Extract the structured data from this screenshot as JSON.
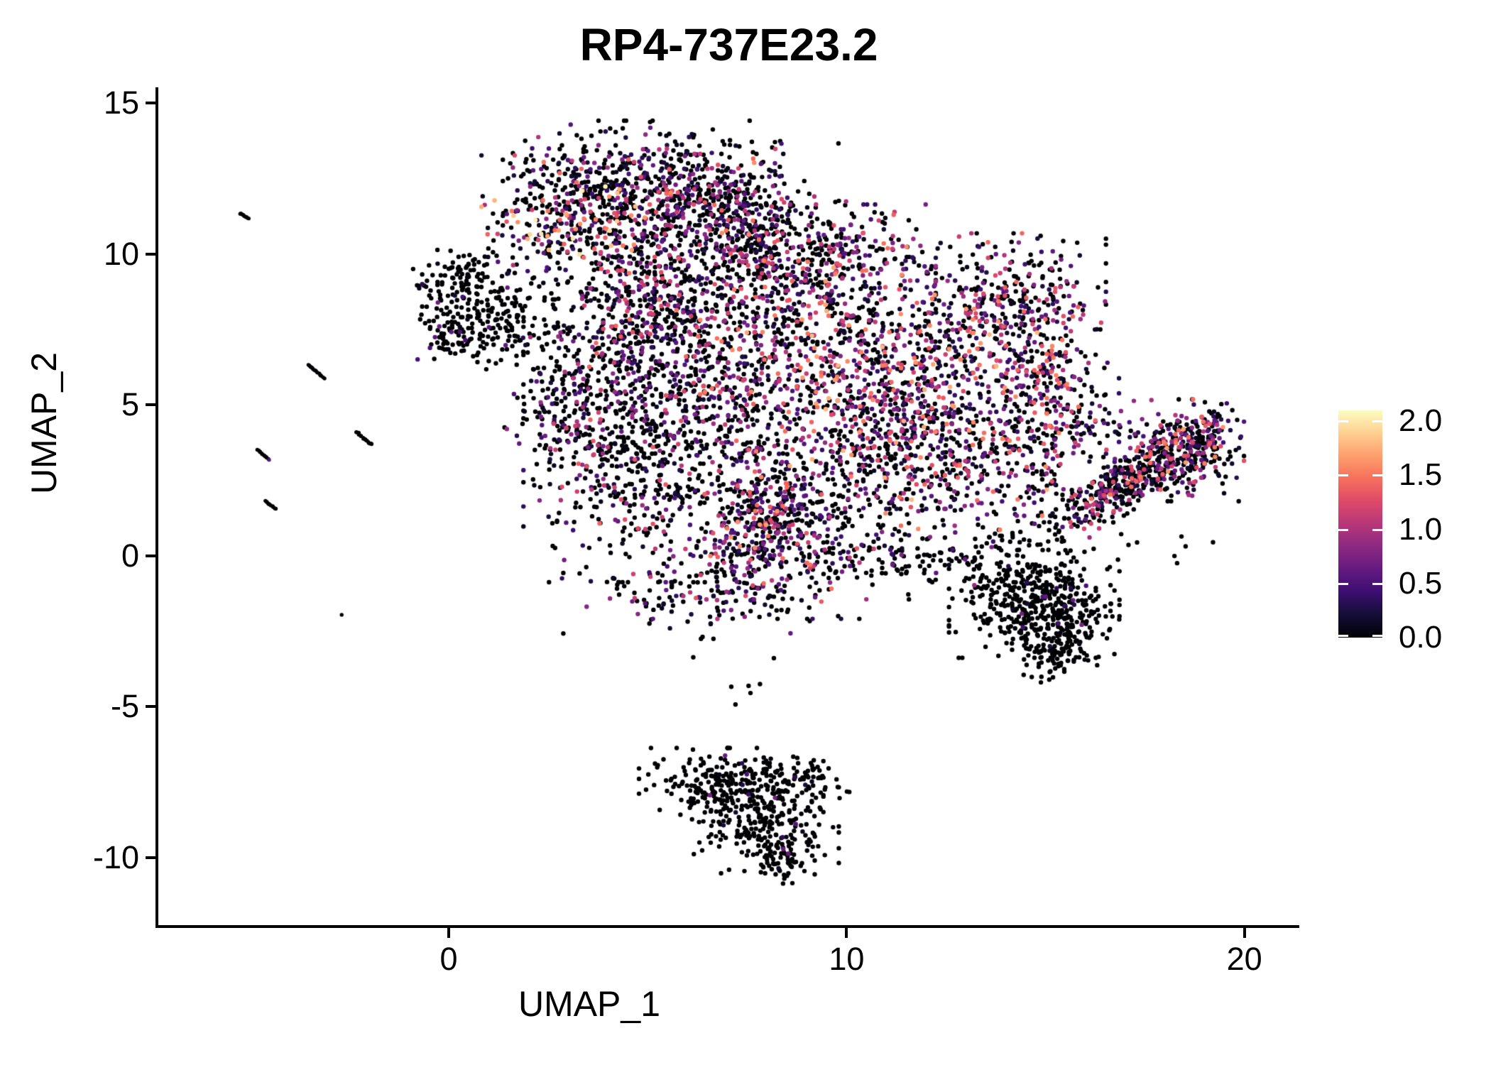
{
  "title": "RP4-737E23.2",
  "axes": {
    "x": {
      "label": "UMAP_1",
      "tick_labels": [
        "0",
        "10",
        "20"
      ],
      "tick_values": [
        0,
        10,
        20
      ],
      "range": [
        -7.3,
        21.38
      ]
    },
    "y": {
      "label": "UMAP_2",
      "tick_labels": [
        "15",
        "10",
        "5",
        "0",
        "-5",
        "-10"
      ],
      "tick_values": [
        15,
        10,
        5,
        0,
        -5,
        -10
      ],
      "range": [
        -12.22,
        15.47
      ]
    }
  },
  "legend": {
    "tick_labels": [
      "2.0",
      "1.5",
      "1.0",
      "0.5",
      "0.0"
    ],
    "tick_values": [
      2.0,
      1.5,
      1.0,
      0.5,
      0.0
    ],
    "bar_max": 2.1,
    "palette": "magma",
    "stops": [
      [
        0,
        "#000004"
      ],
      [
        0.1,
        "#140e36"
      ],
      [
        0.2,
        "#3b0f70"
      ],
      [
        0.3,
        "#641a80"
      ],
      [
        0.4,
        "#8c2981"
      ],
      [
        0.5,
        "#b73779"
      ],
      [
        0.6,
        "#de4968"
      ],
      [
        0.7,
        "#f7705c"
      ],
      [
        0.8,
        "#fe9f6d"
      ],
      [
        0.9,
        "#fecf92"
      ],
      [
        1,
        "#fcfdbf"
      ]
    ]
  },
  "chart_data": {
    "type": "scatter",
    "title": "RP4-737E23.2",
    "xlabel": "UMAP_1",
    "ylabel": "UMAP_2",
    "xlim": [
      -7.3,
      21.38
    ],
    "ylim": [
      -12.22,
      15.47
    ],
    "x_ticks": [
      0,
      10,
      20
    ],
    "y_ticks": [
      15,
      10,
      5,
      0,
      -5,
      -10
    ],
    "grid": false,
    "legend_position": "right",
    "color_scale": {
      "palette": "magma",
      "domain": [
        0,
        2.1
      ],
      "legend_ticks": [
        0,
        0.5,
        1.0,
        1.5,
        2.0
      ]
    },
    "point_radius_px": 3.2,
    "seed": 1337,
    "clusters": [
      {
        "name": "top-band",
        "cx": 4.78,
        "cy": 12.41,
        "sx": 1.52,
        "sy": 0.89,
        "rot": 0,
        "n": 420,
        "p0": 0.48,
        "emax": 1.5,
        "epow": 1.6
      },
      {
        "name": "top-left-hotspot",
        "cx": 3.14,
        "cy": 11.35,
        "sx": 1.03,
        "sy": 0.85,
        "rot": 0,
        "n": 260,
        "p0": 0.4,
        "emax": 2.1,
        "epow": 1.8
      },
      {
        "name": "top-right-band",
        "cx": 6.3,
        "cy": 11.4,
        "sx": 1.28,
        "sy": 0.85,
        "rot": 0,
        "n": 270,
        "p0": 0.5,
        "emax": 1.6,
        "epow": 1.7
      },
      {
        "name": "top-lower-fringe",
        "cx": 4.42,
        "cy": 9.94,
        "sx": 1.7,
        "sy": 0.66,
        "rot": 0,
        "n": 95,
        "p0": 0.6,
        "emax": 1.2,
        "epow": 1.5
      },
      {
        "name": "top-left-tail",
        "cx": 2.46,
        "cy": 9.75,
        "sx": 0.46,
        "sy": 0.56,
        "rot": 0,
        "n": 22,
        "p0": 0.75,
        "emax": 0.9,
        "epow": 1.5
      },
      {
        "name": "top-right-bridge",
        "cx": 7.39,
        "cy": 11.92,
        "sx": 0.8,
        "sy": 0.75,
        "rot": 0,
        "n": 75,
        "p0": 0.55,
        "emax": 1.4,
        "epow": 1.6
      },
      {
        "name": "top-right-trail",
        "cx": 7.24,
        "cy": 10.6,
        "sx": 0.54,
        "sy": 0.61,
        "rot": 0,
        "n": 38,
        "p0": 0.65,
        "emax": 1.2,
        "epow": 1.5
      },
      {
        "name": "left-dark-upper",
        "cx": 0.32,
        "cy": 9.0,
        "sx": 0.54,
        "sy": 0.54,
        "rot": 0,
        "n": 115,
        "p0": 0.93,
        "emax": 0.8,
        "epow": 1.2
      },
      {
        "name": "left-dark-lower",
        "cx": 0.14,
        "cy": 7.47,
        "sx": 0.41,
        "sy": 0.47,
        "rot": 0,
        "n": 85,
        "p0": 0.94,
        "emax": 0.7,
        "epow": 1.2
      },
      {
        "name": "left-dark-right",
        "cx": 1.11,
        "cy": 7.66,
        "sx": 0.46,
        "sy": 0.66,
        "rot": 0,
        "n": 85,
        "p0": 0.92,
        "emax": 0.9,
        "epow": 1.2
      },
      {
        "name": "left-dark-fringe",
        "cx": 1.87,
        "cy": 8.34,
        "sx": 0.46,
        "sy": 0.71,
        "rot": 0,
        "n": 22,
        "p0": 0.85,
        "emax": 0.8,
        "epow": 1.3
      },
      {
        "name": "main-left-tip",
        "cx": 3.0,
        "cy": 5.24,
        "sx": 0.71,
        "sy": 1.32,
        "rot": 0,
        "n": 190,
        "p0": 0.62,
        "emax": 1.2,
        "epow": 1.6
      },
      {
        "name": "main-upper-left",
        "cx": 4.87,
        "cy": 8.01,
        "sx": 1.0,
        "sy": 1.18,
        "rot": 0,
        "n": 380,
        "p0": 0.52,
        "emax": 1.5,
        "epow": 1.6
      },
      {
        "name": "main-mid-left",
        "cx": 4.6,
        "cy": 3.35,
        "sx": 1.21,
        "sy": 1.88,
        "rot": 0,
        "n": 500,
        "p0": 0.56,
        "emax": 1.4,
        "epow": 1.7
      },
      {
        "name": "main-center",
        "cx": 7.1,
        "cy": 6.18,
        "sx": 1.43,
        "sy": 2.12,
        "rot": 0,
        "n": 650,
        "p0": 0.47,
        "emax": 1.6,
        "epow": 1.6
      },
      {
        "name": "main-hot-right",
        "cx": 11.03,
        "cy": 5.89,
        "sx": 1.78,
        "sy": 1.93,
        "rot": 0,
        "n": 920,
        "p0": 0.32,
        "emax": 1.8,
        "epow": 1.4
      },
      {
        "name": "main-upper-band",
        "cx": 8.71,
        "cy": 9.52,
        "sx": 1.57,
        "sy": 0.94,
        "rot": 0,
        "n": 390,
        "p0": 0.47,
        "emax": 1.6,
        "epow": 1.6
      },
      {
        "name": "main-right-arm",
        "cx": 14.27,
        "cy": 8.25,
        "sx": 1.0,
        "sy": 1.08,
        "rot": 0,
        "n": 270,
        "p0": 0.52,
        "emax": 1.5,
        "epow": 1.5
      },
      {
        "name": "main-right-column",
        "cx": 15.16,
        "cy": 5.12,
        "sx": 0.75,
        "sy": 1.69,
        "rot": 0,
        "n": 310,
        "p0": 0.42,
        "emax": 1.6,
        "epow": 1.4
      },
      {
        "name": "main-lower-mid",
        "cx": 8.35,
        "cy": 1.19,
        "sx": 1.43,
        "sy": 1.46,
        "rot": 0,
        "n": 480,
        "p0": 0.5,
        "emax": 1.5,
        "epow": 1.6
      },
      {
        "name": "main-lower-right",
        "cx": 12.45,
        "cy": 3.31,
        "sx": 1.25,
        "sy": 1.46,
        "rot": 0,
        "n": 390,
        "p0": 0.47,
        "emax": 1.6,
        "epow": 1.5
      },
      {
        "name": "main-trail-to-blob",
        "cx": 11.92,
        "cy": -0.34,
        "sx": 1.28,
        "sy": 0.42,
        "rot": 0,
        "n": 85,
        "p0": 0.88,
        "emax": 0.9,
        "epow": 1.3
      },
      {
        "name": "main-hot-pocket",
        "cx": 7.85,
        "cy": 0.72,
        "sx": 0.57,
        "sy": 1.22,
        "rot": 0,
        "n": 160,
        "p0": 0.38,
        "emax": 1.7,
        "epow": 1.4
      },
      {
        "name": "main-bottom-fringe",
        "cx": 6.57,
        "cy": -1.16,
        "sx": 1.64,
        "sy": 0.71,
        "rot": 0,
        "n": 150,
        "p0": 0.62,
        "emax": 1.2,
        "epow": 1.6
      },
      {
        "name": "main-top-notch",
        "cx": 9.78,
        "cy": 10.6,
        "sx": 0.93,
        "sy": 0.61,
        "rot": 0,
        "n": 60,
        "p0": 0.62,
        "emax": 1.3,
        "epow": 1.6
      },
      {
        "name": "dark-blob-left",
        "cx": 14.42,
        "cy": -1.16,
        "sx": 0.82,
        "sy": 0.99,
        "rot": 0,
        "n": 330,
        "p0": 0.965,
        "emax": 0.9,
        "epow": 1.2
      },
      {
        "name": "dark-blob-right",
        "cx": 15.42,
        "cy": -2.11,
        "sx": 0.64,
        "sy": 0.85,
        "rot": 0,
        "n": 230,
        "p0": 0.97,
        "emax": 0.8,
        "epow": 1.2
      },
      {
        "name": "dark-blob-tail",
        "cx": 15.06,
        "cy": -3.38,
        "sx": 0.34,
        "sy": 0.42,
        "rot": 0,
        "n": 60,
        "p0": 0.99,
        "emax": 0.6,
        "epow": 1.0
      },
      {
        "name": "right-diag-band",
        "cx": 17.23,
        "cy": 2.6,
        "sx": 1.15,
        "sy": 0.36,
        "rot": 40,
        "n": 430,
        "p0": 0.52,
        "emax": 1.5,
        "epow": 1.5
      },
      {
        "name": "right-diag-head",
        "cx": 18.55,
        "cy": 3.49,
        "sx": 0.64,
        "sy": 0.75,
        "rot": 0,
        "n": 240,
        "p0": 0.4,
        "emax": 1.7,
        "epow": 1.4
      },
      {
        "name": "right-diag-tip",
        "cx": 19.34,
        "cy": 4.29,
        "sx": 0.32,
        "sy": 0.38,
        "rot": 0,
        "n": 25,
        "p0": 0.55,
        "emax": 1.4,
        "epow": 1.4
      },
      {
        "name": "bottom-wide",
        "cx": 7.1,
        "cy": -7.59,
        "sx": 1.03,
        "sy": 0.54,
        "rot": 0,
        "n": 270,
        "p0": 0.965,
        "emax": 0.8,
        "epow": 1.2
      },
      {
        "name": "bottom-lower",
        "cx": 7.96,
        "cy": -8.93,
        "sx": 0.82,
        "sy": 0.71,
        "rot": 0,
        "n": 210,
        "p0": 0.96,
        "emax": 0.8,
        "epow": 1.2
      },
      {
        "name": "bottom-tip",
        "cx": 8.39,
        "cy": -10.01,
        "sx": 0.36,
        "sy": 0.38,
        "rot": 0,
        "n": 50,
        "p0": 0.98,
        "emax": 0.6,
        "epow": 1.0
      },
      {
        "name": "bottom-right-arm",
        "cx": 9.21,
        "cy": -7.38,
        "sx": 0.46,
        "sy": 0.31,
        "rot": 0,
        "n": 35,
        "p0": 0.94,
        "emax": 0.7,
        "epow": 1.2
      },
      {
        "name": "bridge-top",
        "cx": 8.39,
        "cy": 11.35,
        "sx": 0.71,
        "sy": 1.06,
        "rot": 0,
        "n": 42,
        "p0": 0.68,
        "emax": 1.3,
        "epow": 1.5
      },
      {
        "name": "bridge-left",
        "cx": 2.23,
        "cy": 7.12,
        "sx": 0.45,
        "sy": 1.06,
        "rot": 0,
        "n": 30,
        "p0": 0.8,
        "emax": 1.0,
        "epow": 1.5
      },
      {
        "name": "scatter-below-diag",
        "cx": 17.27,
        "cy": 0.11,
        "sx": 0.89,
        "sy": 0.47,
        "rot": 0,
        "n": 12,
        "p0": 1.0,
        "emax": 0,
        "epow": 1
      },
      {
        "name": "gap-dots",
        "cx": 14.92,
        "cy": 1.8,
        "sx": 0.54,
        "sy": 0.85,
        "rot": 0,
        "n": 26,
        "p0": 0.72,
        "emax": 1.2,
        "epow": 1.5
      },
      {
        "name": "stray-mid",
        "cx": 7.64,
        "cy": -4.22,
        "sx": 1.07,
        "sy": 0.66,
        "rot": 0,
        "n": 7,
        "p0": 1.0,
        "emax": 0,
        "epow": 1
      },
      {
        "name": "gap-dots-upper",
        "cx": 16.56,
        "cy": 4.48,
        "sx": 0.46,
        "sy": 0.52,
        "rot": 0,
        "n": 14,
        "p0": 0.65,
        "emax": 1.3,
        "epow": 1.4
      }
    ],
    "streaks": [
      {
        "name": "streak-1",
        "x1": -5.25,
        "y1": 11.35,
        "x2": -5.03,
        "y2": 11.16,
        "n": 10
      },
      {
        "name": "streak-2",
        "x1": -3.55,
        "y1": 6.34,
        "x2": -3.12,
        "y2": 5.87,
        "n": 16
      },
      {
        "name": "streak-3",
        "x1": -2.32,
        "y1": 4.11,
        "x2": -1.94,
        "y2": 3.66,
        "n": 20,
        "thick": true
      },
      {
        "name": "streak-4",
        "x1": -4.82,
        "y1": 3.52,
        "x2": -4.5,
        "y2": 3.16,
        "n": 12,
        "tip_expr": 0.55
      },
      {
        "name": "streak-5",
        "x1": -4.62,
        "y1": 1.82,
        "x2": -4.35,
        "y2": 1.54,
        "n": 11
      },
      {
        "name": "lone-dot",
        "x1": -2.69,
        "y1": -1.96,
        "x2": -2.69,
        "y2": -1.96,
        "n": 1
      }
    ]
  }
}
